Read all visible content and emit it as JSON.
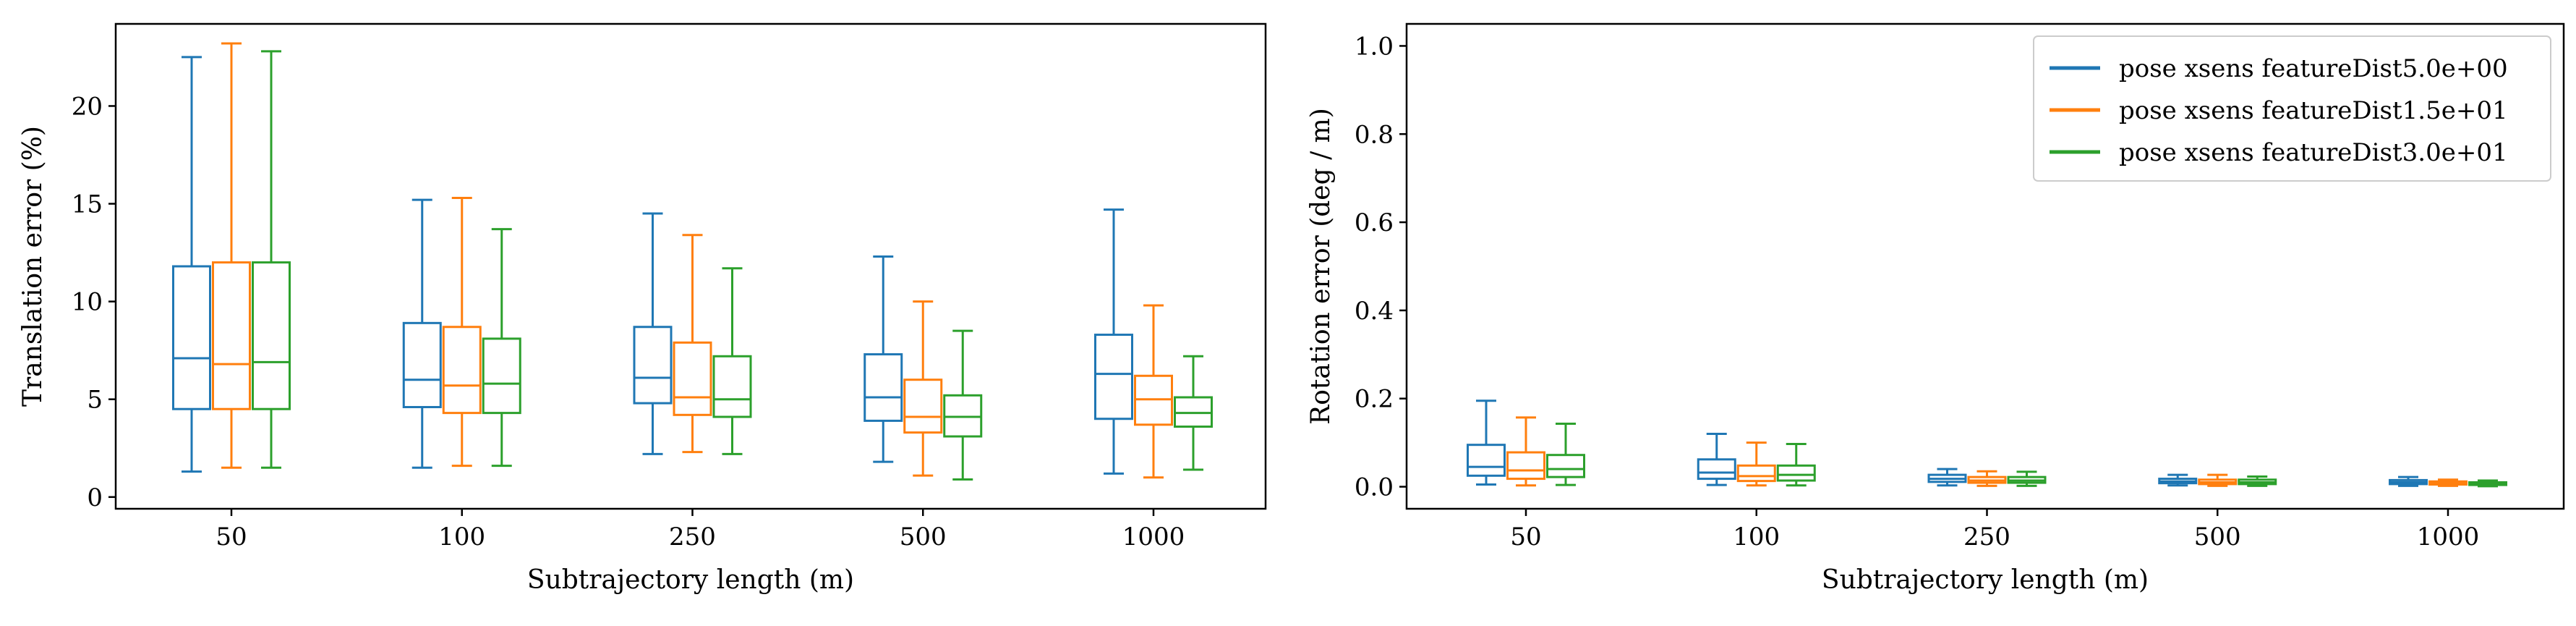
{
  "colors": {
    "series_0": "#1f77b4",
    "series_1": "#ff7f0e",
    "series_2": "#2ca02c",
    "axes": "#000000",
    "legend_border": "#cccccc"
  },
  "chart_data": [
    {
      "type": "box",
      "xlabel": "Subtrajectory length (m)",
      "ylabel": "Translation error (%)",
      "ylim": [
        -0.6,
        24.2
      ],
      "yticks": [
        0,
        5,
        10,
        15,
        20
      ],
      "categories": [
        "50",
        "100",
        "250",
        "500",
        "1000"
      ],
      "grid": false,
      "series": [
        {
          "color": "#1f77b4",
          "boxes": [
            {
              "whislo": 1.3,
              "q1": 4.5,
              "med": 7.1,
              "q3": 11.8,
              "whishi": 22.5
            },
            {
              "whislo": 1.5,
              "q1": 4.6,
              "med": 6.0,
              "q3": 8.9,
              "whishi": 15.2
            },
            {
              "whislo": 2.2,
              "q1": 4.8,
              "med": 6.1,
              "q3": 8.7,
              "whishi": 14.5
            },
            {
              "whislo": 1.8,
              "q1": 3.9,
              "med": 5.1,
              "q3": 7.3,
              "whishi": 12.3
            },
            {
              "whislo": 1.2,
              "q1": 4.0,
              "med": 6.3,
              "q3": 8.3,
              "whishi": 14.7
            }
          ]
        },
        {
          "color": "#ff7f0e",
          "boxes": [
            {
              "whislo": 1.5,
              "q1": 4.5,
              "med": 6.8,
              "q3": 12.0,
              "whishi": 23.2
            },
            {
              "whislo": 1.6,
              "q1": 4.3,
              "med": 5.7,
              "q3": 8.7,
              "whishi": 15.3
            },
            {
              "whislo": 2.3,
              "q1": 4.2,
              "med": 5.1,
              "q3": 7.9,
              "whishi": 13.4
            },
            {
              "whislo": 1.1,
              "q1": 3.3,
              "med": 4.1,
              "q3": 6.0,
              "whishi": 10.0
            },
            {
              "whislo": 1.0,
              "q1": 3.7,
              "med": 5.0,
              "q3": 6.2,
              "whishi": 9.8
            }
          ]
        },
        {
          "color": "#2ca02c",
          "boxes": [
            {
              "whislo": 1.5,
              "q1": 4.5,
              "med": 6.9,
              "q3": 12.0,
              "whishi": 22.8
            },
            {
              "whislo": 1.6,
              "q1": 4.3,
              "med": 5.8,
              "q3": 8.1,
              "whishi": 13.7
            },
            {
              "whislo": 2.2,
              "q1": 4.1,
              "med": 5.0,
              "q3": 7.2,
              "whishi": 11.7
            },
            {
              "whislo": 0.9,
              "q1": 3.1,
              "med": 4.1,
              "q3": 5.2,
              "whishi": 8.5
            },
            {
              "whislo": 1.4,
              "q1": 3.6,
              "med": 4.3,
              "q3": 5.1,
              "whishi": 7.2
            }
          ]
        }
      ]
    },
    {
      "type": "box",
      "xlabel": "Subtrajectory length (m)",
      "ylabel": "Rotation error (deg / m)",
      "ylim": [
        -0.05,
        1.05
      ],
      "yticks": [
        0.0,
        0.2,
        0.4,
        0.6,
        0.8,
        1.0
      ],
      "ytick_labels": [
        "0.0",
        "0.2",
        "0.4",
        "0.6",
        "0.8",
        "1.0"
      ],
      "categories": [
        "50",
        "100",
        "250",
        "500",
        "1000"
      ],
      "grid": false,
      "legend_position": "top-right",
      "series": [
        {
          "name": "pose xsens featureDist5.0e+00",
          "color": "#1f77b4",
          "boxes": [
            {
              "whislo": 0.005,
              "q1": 0.025,
              "med": 0.045,
              "q3": 0.095,
              "whishi": 0.195
            },
            {
              "whislo": 0.004,
              "q1": 0.018,
              "med": 0.032,
              "q3": 0.062,
              "whishi": 0.12
            },
            {
              "whislo": 0.003,
              "q1": 0.011,
              "med": 0.018,
              "q3": 0.027,
              "whishi": 0.04
            },
            {
              "whislo": 0.003,
              "q1": 0.008,
              "med": 0.012,
              "q3": 0.018,
              "whishi": 0.027
            },
            {
              "whislo": 0.002,
              "q1": 0.006,
              "med": 0.01,
              "q3": 0.015,
              "whishi": 0.022
            }
          ]
        },
        {
          "name": "pose xsens featureDist1.5e+01",
          "color": "#ff7f0e",
          "boxes": [
            {
              "whislo": 0.003,
              "q1": 0.018,
              "med": 0.037,
              "q3": 0.078,
              "whishi": 0.157
            },
            {
              "whislo": 0.003,
              "q1": 0.013,
              "med": 0.024,
              "q3": 0.048,
              "whishi": 0.1
            },
            {
              "whislo": 0.002,
              "q1": 0.009,
              "med": 0.014,
              "q3": 0.022,
              "whishi": 0.035
            },
            {
              "whislo": 0.002,
              "q1": 0.006,
              "med": 0.01,
              "q3": 0.016,
              "whishi": 0.027
            },
            {
              "whislo": 0.002,
              "q1": 0.005,
              "med": 0.008,
              "q3": 0.012,
              "whishi": 0.016
            }
          ]
        },
        {
          "name": "pose xsens featureDist3.0e+01",
          "color": "#2ca02c",
          "boxes": [
            {
              "whislo": 0.004,
              "q1": 0.022,
              "med": 0.04,
              "q3": 0.072,
              "whishi": 0.143
            },
            {
              "whislo": 0.003,
              "q1": 0.014,
              "med": 0.027,
              "q3": 0.048,
              "whishi": 0.097
            },
            {
              "whislo": 0.002,
              "q1": 0.009,
              "med": 0.014,
              "q3": 0.022,
              "whishi": 0.034
            },
            {
              "whislo": 0.002,
              "q1": 0.006,
              "med": 0.01,
              "q3": 0.016,
              "whishi": 0.023
            },
            {
              "whislo": 0.001,
              "q1": 0.004,
              "med": 0.007,
              "q3": 0.01,
              "whishi": 0.014
            }
          ]
        }
      ]
    }
  ]
}
